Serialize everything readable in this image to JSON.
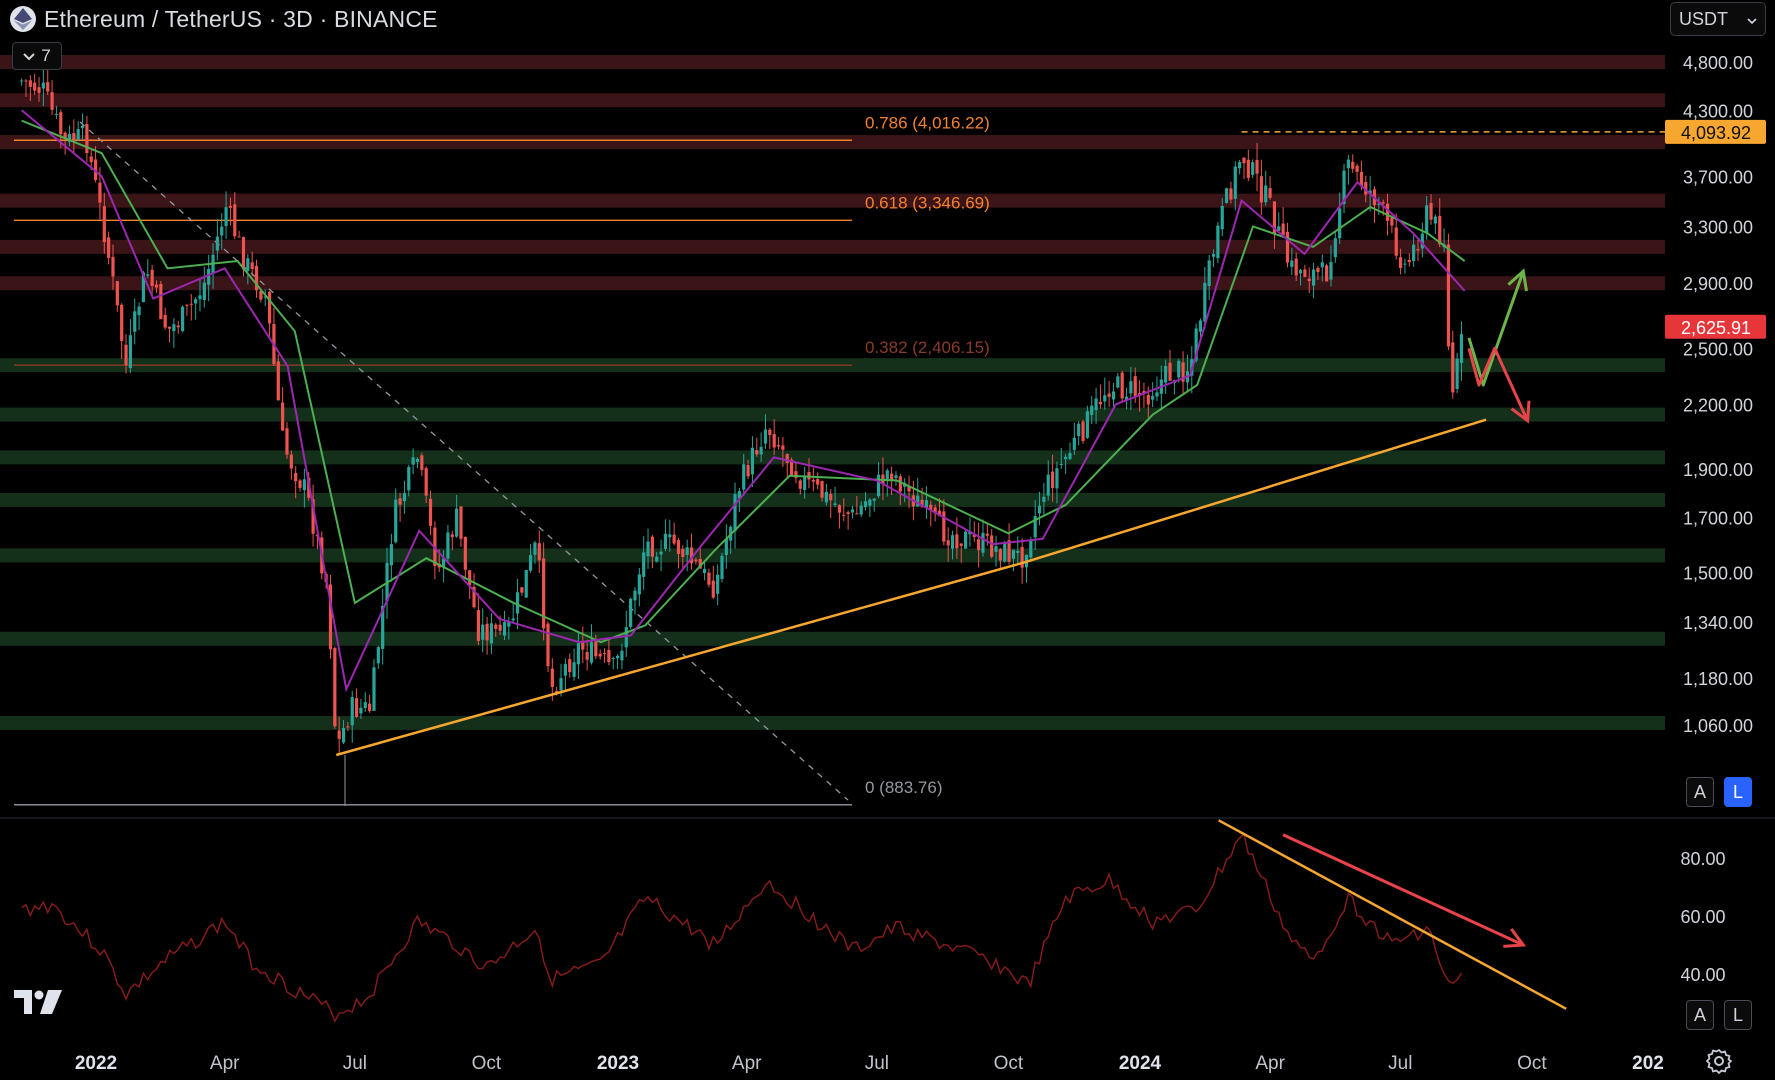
{
  "header": {
    "title": "Ethereum / TetherUS · 3D · BINANCE",
    "indicator_count": "7",
    "currency": "USDT",
    "coin_icon": "ethereum-coin-icon"
  },
  "price_axis": {
    "ticks": [
      "4,800.00",
      "4,300.00",
      "3,700.00",
      "3,300.00",
      "2,900.00",
      "2,500.00",
      "2,200.00",
      "1,900.00",
      "1,700.00",
      "1,500.00",
      "1,340.00",
      "1,180.00",
      "1,060.00"
    ],
    "last_high_label": "4,093.92",
    "last_high_color": "#f7a72f",
    "current_price_label": "2,625.91",
    "current_price_color": "#e8353a",
    "scale_buttons": {
      "auto": "A",
      "log": "L"
    }
  },
  "fibonacci": {
    "levels": [
      {
        "label": "0.786 (4,016.22)",
        "color": "#f2822c"
      },
      {
        "label": "0.618 (3,346.69)",
        "color": "#f2822c"
      },
      {
        "label": "0.382 (2,406.15)",
        "color": "#8a3a2b"
      },
      {
        "label": "0 (883.76)",
        "color": "#9598a1"
      }
    ]
  },
  "rsi_axis": {
    "ticks": [
      "80.00",
      "60.00",
      "40.00"
    ],
    "scale_buttons": {
      "auto": "A",
      "log": "L"
    }
  },
  "time_axis": {
    "labels": [
      "2022",
      "Apr",
      "Jul",
      "Oct",
      "2023",
      "Apr",
      "Jul",
      "Oct",
      "2024",
      "Apr",
      "Jul",
      "Oct",
      "202"
    ]
  },
  "colors": {
    "resistance_zone": "#3a1416",
    "support_zone": "#15301a",
    "trendline": "#f7a72f",
    "bull_candle": "#26a69a",
    "bear_candle": "#ef5350",
    "rsi_line": "#8b1c1c",
    "ma_fast": "#9c27b0",
    "ma_slow": "#4caf50"
  },
  "chart_data": {
    "type": "candlestick",
    "symbol": "ETHUSDT",
    "interval": "3D",
    "exchange": "BINANCE",
    "price_scale": "log",
    "ylim": [
      870,
      4950
    ],
    "resistance_zones": [
      4800,
      4400,
      4000,
      3500,
      3150,
      2900
    ],
    "support_zones": [
      2406,
      2150,
      1950,
      1770,
      1560,
      1290,
      1065
    ],
    "fibonacci_levels": [
      {
        "ratio": 0.786,
        "price": 4016.22
      },
      {
        "ratio": 0.618,
        "price": 3346.69
      },
      {
        "ratio": 0.382,
        "price": 2406.15
      },
      {
        "ratio": 0,
        "price": 883.76
      }
    ],
    "last_high": 4093.92,
    "current_price": 2625.91,
    "close_path": [
      {
        "date": "2021-11-10",
        "price": 4600
      },
      {
        "date": "2021-11-25",
        "price": 4500
      },
      {
        "date": "2021-12-10",
        "price": 4000
      },
      {
        "date": "2021-12-25",
        "price": 4050
      },
      {
        "date": "2022-01-08",
        "price": 3200
      },
      {
        "date": "2022-01-22",
        "price": 2400
      },
      {
        "date": "2022-02-05",
        "price": 3000
      },
      {
        "date": "2022-02-20",
        "price": 2600
      },
      {
        "date": "2022-03-05",
        "price": 2700
      },
      {
        "date": "2022-03-18",
        "price": 2900
      },
      {
        "date": "2022-04-02",
        "price": 3450
      },
      {
        "date": "2022-04-15",
        "price": 3050
      },
      {
        "date": "2022-04-30",
        "price": 2800
      },
      {
        "date": "2022-05-12",
        "price": 2000
      },
      {
        "date": "2022-05-28",
        "price": 1800
      },
      {
        "date": "2022-06-12",
        "price": 1450
      },
      {
        "date": "2022-06-18",
        "price": 1000
      },
      {
        "date": "2022-06-28",
        "price": 1100
      },
      {
        "date": "2022-07-12",
        "price": 1100
      },
      {
        "date": "2022-07-28",
        "price": 1700
      },
      {
        "date": "2022-08-14",
        "price": 1950
      },
      {
        "date": "2022-08-28",
        "price": 1500
      },
      {
        "date": "2022-09-10",
        "price": 1700
      },
      {
        "date": "2022-09-25",
        "price": 1320
      },
      {
        "date": "2022-10-15",
        "price": 1300
      },
      {
        "date": "2022-11-05",
        "price": 1600
      },
      {
        "date": "2022-11-15",
        "price": 1150
      },
      {
        "date": "2022-12-05",
        "price": 1270
      },
      {
        "date": "2022-12-30",
        "price": 1200
      },
      {
        "date": "2023-01-20",
        "price": 1600
      },
      {
        "date": "2023-02-10",
        "price": 1600
      },
      {
        "date": "2023-03-10",
        "price": 1450
      },
      {
        "date": "2023-03-25",
        "price": 1800
      },
      {
        "date": "2023-04-15",
        "price": 2100
      },
      {
        "date": "2023-05-10",
        "price": 1850
      },
      {
        "date": "2023-06-15",
        "price": 1700
      },
      {
        "date": "2023-07-10",
        "price": 1900
      },
      {
        "date": "2023-08-15",
        "price": 1650
      },
      {
        "date": "2023-09-15",
        "price": 1600
      },
      {
        "date": "2023-10-10",
        "price": 1550
      },
      {
        "date": "2023-10-25",
        "price": 1800
      },
      {
        "date": "2023-11-15",
        "price": 2000
      },
      {
        "date": "2023-12-10",
        "price": 2300
      },
      {
        "date": "2024-01-05",
        "price": 2250
      },
      {
        "date": "2024-01-20",
        "price": 2350
      },
      {
        "date": "2024-02-05",
        "price": 2400
      },
      {
        "date": "2024-02-25",
        "price": 3300
      },
      {
        "date": "2024-03-12",
        "price": 3900
      },
      {
        "date": "2024-03-30",
        "price": 3500
      },
      {
        "date": "2024-04-15",
        "price": 3000
      },
      {
        "date": "2024-05-10",
        "price": 2950
      },
      {
        "date": "2024-05-25",
        "price": 3800
      },
      {
        "date": "2024-06-15",
        "price": 3500
      },
      {
        "date": "2024-07-05",
        "price": 3000
      },
      {
        "date": "2024-07-20",
        "price": 3400
      },
      {
        "date": "2024-08-01",
        "price": 3200
      },
      {
        "date": "2024-08-05",
        "price": 2200
      },
      {
        "date": "2024-08-15",
        "price": 2625.91
      }
    ],
    "ma_fast_path": [
      {
        "date": "2021-11-10",
        "price": 4300
      },
      {
        "date": "2022-01-05",
        "price": 3700
      },
      {
        "date": "2022-02-10",
        "price": 2800
      },
      {
        "date": "2022-04-01",
        "price": 3000
      },
      {
        "date": "2022-05-15",
        "price": 2400
      },
      {
        "date": "2022-06-25",
        "price": 1150
      },
      {
        "date": "2022-08-15",
        "price": 1650
      },
      {
        "date": "2022-10-10",
        "price": 1350
      },
      {
        "date": "2022-12-05",
        "price": 1280
      },
      {
        "date": "2023-01-10",
        "price": 1300
      },
      {
        "date": "2023-03-01",
        "price": 1600
      },
      {
        "date": "2023-04-20",
        "price": 1950
      },
      {
        "date": "2023-07-01",
        "price": 1850
      },
      {
        "date": "2023-09-20",
        "price": 1600
      },
      {
        "date": "2023-10-25",
        "price": 1620
      },
      {
        "date": "2023-12-15",
        "price": 2200
      },
      {
        "date": "2024-02-05",
        "price": 2350
      },
      {
        "date": "2024-03-12",
        "price": 3500
      },
      {
        "date": "2024-04-25",
        "price": 3100
      },
      {
        "date": "2024-06-01",
        "price": 3650
      },
      {
        "date": "2024-07-10",
        "price": 3250
      },
      {
        "date": "2024-08-15",
        "price": 2850
      }
    ],
    "ma_slow_path": [
      {
        "date": "2021-11-10",
        "price": 4200
      },
      {
        "date": "2022-01-05",
        "price": 3900
      },
      {
        "date": "2022-02-20",
        "price": 3000
      },
      {
        "date": "2022-04-10",
        "price": 3050
      },
      {
        "date": "2022-05-20",
        "price": 2600
      },
      {
        "date": "2022-07-01",
        "price": 1400
      },
      {
        "date": "2022-08-20",
        "price": 1550
      },
      {
        "date": "2022-10-20",
        "price": 1400
      },
      {
        "date": "2022-12-20",
        "price": 1280
      },
      {
        "date": "2023-01-20",
        "price": 1330
      },
      {
        "date": "2023-03-10",
        "price": 1580
      },
      {
        "date": "2023-05-01",
        "price": 1870
      },
      {
        "date": "2023-07-15",
        "price": 1850
      },
      {
        "date": "2023-10-01",
        "price": 1640
      },
      {
        "date": "2023-11-10",
        "price": 1750
      },
      {
        "date": "2024-01-10",
        "price": 2150
      },
      {
        "date": "2024-02-10",
        "price": 2300
      },
      {
        "date": "2024-03-20",
        "price": 3300
      },
      {
        "date": "2024-05-01",
        "price": 3150
      },
      {
        "date": "2024-06-10",
        "price": 3450
      },
      {
        "date": "2024-07-20",
        "price": 3250
      },
      {
        "date": "2024-08-15",
        "price": 3050
      }
    ],
    "trendline": [
      {
        "date": "2022-06-18",
        "price": 990
      },
      {
        "date": "2023-10-12",
        "price": 1535
      },
      {
        "date": "2024-08-30",
        "price": 2125
      }
    ],
    "projection_bull": [
      {
        "date": "2024-08-18",
        "price": 2560
      },
      {
        "date": "2024-08-28",
        "price": 2300
      },
      {
        "date": "2024-09-25",
        "price": 2980
      }
    ],
    "projection_bear": [
      {
        "date": "2024-08-18",
        "price": 2500
      },
      {
        "date": "2024-08-25",
        "price": 2300
      },
      {
        "date": "2024-09-05",
        "price": 2500
      },
      {
        "date": "2024-09-28",
        "price": 2120
      }
    ],
    "rsi": {
      "ylim": [
        22,
        95
      ],
      "ticks": [
        80,
        60,
        40
      ],
      "path": [
        {
          "date": "2021-11-10",
          "value": 62
        },
        {
          "date": "2021-12-01",
          "value": 64
        },
        {
          "date": "2022-01-05",
          "value": 48
        },
        {
          "date": "2022-01-22",
          "value": 33
        },
        {
          "date": "2022-02-20",
          "value": 45
        },
        {
          "date": "2022-04-01",
          "value": 58
        },
        {
          "date": "2022-04-20",
          "value": 44
        },
        {
          "date": "2022-05-15",
          "value": 36
        },
        {
          "date": "2022-06-18",
          "value": 26
        },
        {
          "date": "2022-07-10",
          "value": 32
        },
        {
          "date": "2022-08-14",
          "value": 58
        },
        {
          "date": "2022-09-10",
          "value": 50
        },
        {
          "date": "2022-10-01",
          "value": 42
        },
        {
          "date": "2022-11-05",
          "value": 56
        },
        {
          "date": "2022-11-15",
          "value": 38
        },
        {
          "date": "2022-12-20",
          "value": 43
        },
        {
          "date": "2023-01-20",
          "value": 66
        },
        {
          "date": "2023-03-10",
          "value": 50
        },
        {
          "date": "2023-04-15",
          "value": 72
        },
        {
          "date": "2023-06-15",
          "value": 48
        },
        {
          "date": "2023-07-15",
          "value": 56
        },
        {
          "date": "2023-09-20",
          "value": 44
        },
        {
          "date": "2023-10-15",
          "value": 36
        },
        {
          "date": "2023-11-10",
          "value": 66
        },
        {
          "date": "2023-12-10",
          "value": 72
        },
        {
          "date": "2024-01-10",
          "value": 58
        },
        {
          "date": "2024-02-10",
          "value": 62
        },
        {
          "date": "2024-03-12",
          "value": 88
        },
        {
          "date": "2024-04-15",
          "value": 52
        },
        {
          "date": "2024-05-01",
          "value": 44
        },
        {
          "date": "2024-05-25",
          "value": 66
        },
        {
          "date": "2024-06-25",
          "value": 50
        },
        {
          "date": "2024-07-20",
          "value": 56
        },
        {
          "date": "2024-08-05",
          "value": 34
        },
        {
          "date": "2024-08-15",
          "value": 40
        }
      ],
      "trendline": [
        {
          "date": "2024-02-25",
          "value": 93
        },
        {
          "date": "2024-10-25",
          "value": 28
        }
      ],
      "arrow": [
        {
          "date": "2024-04-10",
          "value": 88
        },
        {
          "date": "2024-09-25",
          "value": 50
        }
      ]
    }
  }
}
